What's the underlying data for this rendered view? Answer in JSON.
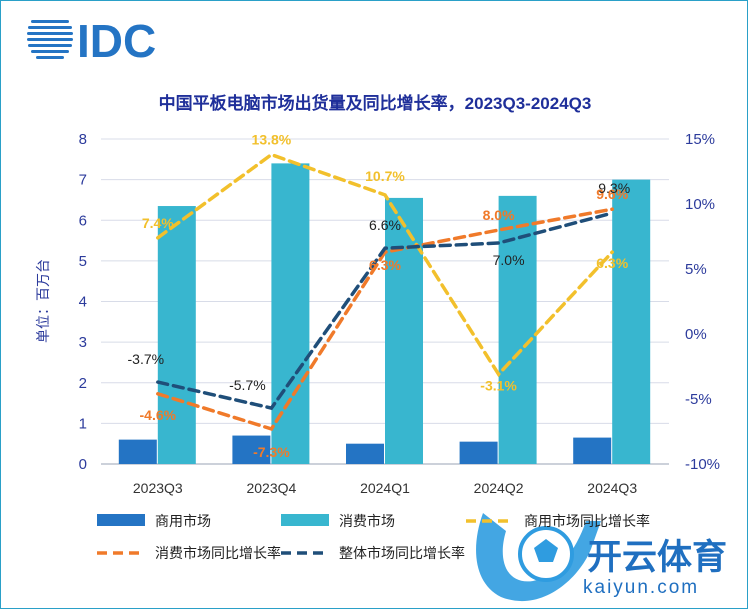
{
  "brand": {
    "logo_text": "IDC",
    "watermark_cn": "开云体育",
    "watermark_url": "kaiyun.com"
  },
  "colors": {
    "commercial": "#2474c4",
    "consumer": "#38b6cf",
    "commercial_yoy": "#f2c02c",
    "consumer_yoy": "#f07a2a",
    "overall_yoy": "#1f4e79",
    "title": "#1f2f9a",
    "axis_text": "#2c3b9c",
    "grid": "#d8dce8"
  },
  "chart_data": {
    "type": "bar",
    "title": "中国平板电脑市场出货量及同比增长率，2023Q3-2024Q3",
    "ylabel": "单位：百万台",
    "ylim": [
      0,
      8
    ],
    "y_ticks": [
      "0",
      "1",
      "2",
      "3",
      "4",
      "5",
      "6",
      "7",
      "8"
    ],
    "y2lim": [
      -10,
      15
    ],
    "y2_ticks": [
      "-10%",
      "-5%",
      "0%",
      "5%",
      "10%",
      "15%"
    ],
    "grid": true,
    "categories": [
      "2023Q3",
      "2023Q4",
      "2024Q1",
      "2024Q2",
      "2024Q3"
    ],
    "bars": [
      {
        "name": "商用市场",
        "values": [
          0.6,
          0.7,
          0.5,
          0.55,
          0.65
        ]
      },
      {
        "name": "消费市场",
        "values": [
          6.35,
          7.4,
          6.55,
          6.6,
          7.0
        ]
      }
    ],
    "lines": [
      {
        "name": "商用市场同比增长率",
        "values": [
          7.4,
          13.8,
          10.7,
          -3.1,
          6.3
        ],
        "labels": [
          "7.4%",
          "13.8%",
          "10.7%",
          "-3.1%",
          "6.3%"
        ]
      },
      {
        "name": "消费市场同比增长率",
        "values": [
          -4.6,
          -7.3,
          6.3,
          8.0,
          9.6
        ],
        "labels": [
          "-4.6%",
          "-7.3%",
          "6.3%",
          "8.0%",
          "9.6%"
        ]
      },
      {
        "name": "整体市场同比增长率",
        "values": [
          -3.7,
          -5.7,
          6.6,
          7.0,
          9.3
        ],
        "labels": [
          "-3.7%",
          "-5.7%",
          "6.6%",
          "7.0%",
          "9.3%"
        ]
      }
    ],
    "legend_position": "bottom"
  }
}
